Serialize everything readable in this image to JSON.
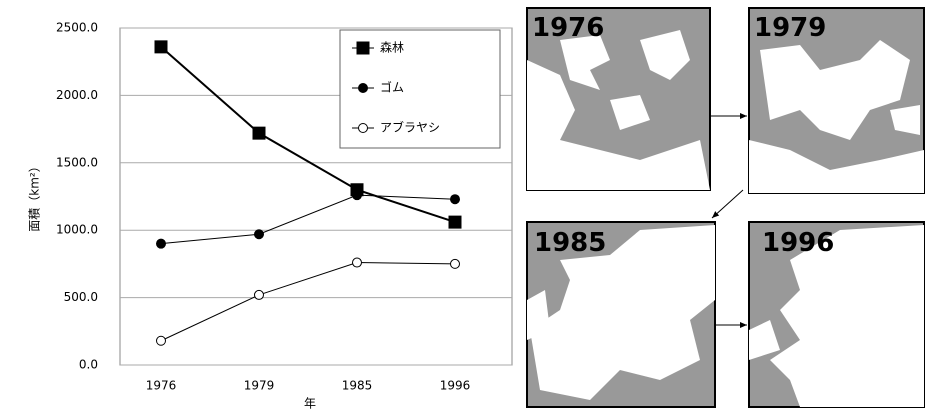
{
  "chart_data": {
    "type": "line",
    "ylabel": "面積（km²）",
    "xlabel": "年",
    "categories": [
      "1976",
      "1979",
      "1985",
      "1996"
    ],
    "series": [
      {
        "name": "森林",
        "color": "#000000",
        "marker": "square",
        "marker_fill": "#000000",
        "values": [
          2360,
          1720,
          1300,
          1060
        ]
      },
      {
        "name": "ゴム",
        "color": "#000000",
        "marker": "circle",
        "marker_fill": "#000000",
        "values": [
          900,
          970,
          1260,
          1230
        ]
      },
      {
        "name": "アブラヤシ",
        "color": "#000000",
        "marker": "circle",
        "marker_fill": "#ffffff",
        "values": [
          180,
          520,
          760,
          750
        ]
      }
    ],
    "ylim": [
      0,
      2500
    ],
    "yticks": [
      {
        "value": 0,
        "label": "0.0"
      },
      {
        "value": 500,
        "label": "500.0"
      },
      {
        "value": 1000,
        "label": "1000.0"
      },
      {
        "value": 1500,
        "label": "1500.0"
      },
      {
        "value": 2000,
        "label": "2000.0"
      },
      {
        "value": 2500,
        "label": "2500.0"
      }
    ],
    "grid": true,
    "legend": "upper right"
  },
  "map_panels": [
    {
      "label": "1976"
    },
    {
      "label": "1979"
    },
    {
      "label": "1985"
    },
    {
      "label": "1996"
    }
  ]
}
